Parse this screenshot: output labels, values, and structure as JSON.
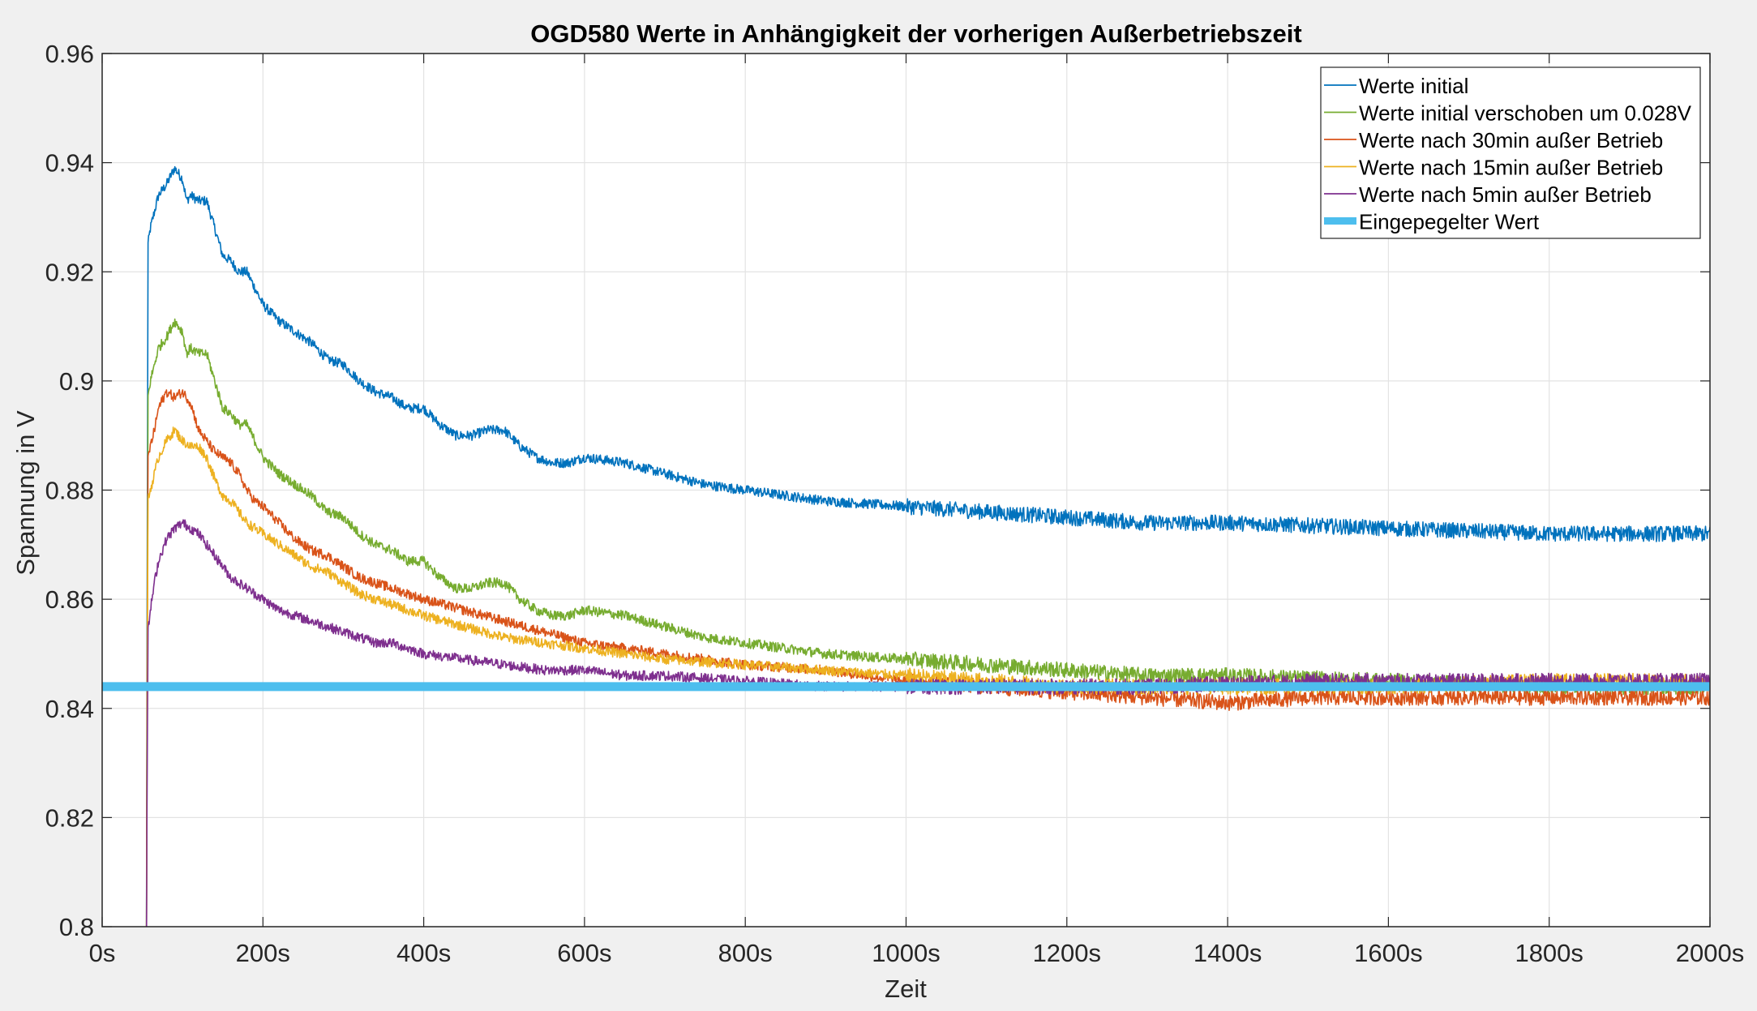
{
  "chart_data": {
    "type": "line",
    "title": "OGD580 Werte in Anhängigkeit der vorherigen Außerbetriebszeit",
    "xlabel": "Zeit",
    "ylabel": "Spannung in V",
    "xlim": [
      0,
      2000
    ],
    "ylim": [
      0.8,
      0.96
    ],
    "xticks": [
      0,
      200,
      400,
      600,
      800,
      1000,
      1200,
      1400,
      1600,
      1800,
      2000
    ],
    "xtick_labels": [
      "0s",
      "200s",
      "400s",
      "600s",
      "800s",
      "1000s",
      "1200s",
      "1400s",
      "1600s",
      "1800s",
      "2000s"
    ],
    "yticks": [
      0.8,
      0.82,
      0.84,
      0.86,
      0.88,
      0.9,
      0.92,
      0.94,
      0.96
    ],
    "ytick_labels": [
      "0.8",
      "0.82",
      "0.84",
      "0.86",
      "0.88",
      "0.9",
      "0.92",
      "0.94",
      "0.96"
    ],
    "grid": true,
    "legend_position": "top-right",
    "start_time": 55,
    "series": [
      {
        "name": "Werte initial",
        "color": "#0072BD",
        "noise": 0.0009,
        "x": [
          55,
          57,
          60,
          65,
          70,
          80,
          90,
          100,
          105,
          110,
          120,
          130,
          140,
          150,
          160,
          170,
          180,
          190,
          200,
          220,
          240,
          260,
          280,
          300,
          320,
          340,
          360,
          380,
          400,
          420,
          440,
          460,
          480,
          500,
          520,
          540,
          560,
          580,
          600,
          650,
          700,
          750,
          800,
          850,
          900,
          1000,
          1100,
          1200,
          1300,
          1400,
          1500,
          1600,
          1700,
          1800,
          1900,
          2000
        ],
        "y": [
          0.8,
          0.925,
          0.928,
          0.931,
          0.934,
          0.936,
          0.939,
          0.937,
          0.933,
          0.934,
          0.933,
          0.933,
          0.928,
          0.923,
          0.922,
          0.92,
          0.92,
          0.917,
          0.914,
          0.911,
          0.909,
          0.907,
          0.904,
          0.903,
          0.9,
          0.898,
          0.897,
          0.895,
          0.895,
          0.892,
          0.89,
          0.89,
          0.891,
          0.891,
          0.888,
          0.886,
          0.885,
          0.885,
          0.886,
          0.885,
          0.883,
          0.881,
          0.88,
          0.879,
          0.878,
          0.877,
          0.876,
          0.875,
          0.874,
          0.874,
          0.8735,
          0.873,
          0.8725,
          0.872,
          0.872,
          0.872
        ]
      },
      {
        "name": "Werte initial verschoben um 0.028V",
        "color": "#77AC30",
        "noise": 0.0009,
        "x": [
          55,
          57,
          60,
          65,
          70,
          80,
          90,
          100,
          105,
          110,
          120,
          130,
          140,
          150,
          160,
          170,
          180,
          190,
          200,
          220,
          240,
          260,
          280,
          300,
          320,
          340,
          360,
          380,
          400,
          420,
          440,
          460,
          480,
          500,
          520,
          540,
          560,
          580,
          600,
          650,
          700,
          750,
          800,
          850,
          900,
          1000,
          1100,
          1200,
          1300,
          1400,
          1500,
          1600,
          1700,
          1800,
          1900,
          2000
        ],
        "y": [
          0.8,
          0.897,
          0.9,
          0.903,
          0.906,
          0.908,
          0.911,
          0.909,
          0.905,
          0.906,
          0.905,
          0.905,
          0.9,
          0.895,
          0.894,
          0.892,
          0.892,
          0.889,
          0.886,
          0.883,
          0.881,
          0.879,
          0.876,
          0.875,
          0.872,
          0.87,
          0.869,
          0.867,
          0.867,
          0.864,
          0.862,
          0.862,
          0.863,
          0.863,
          0.86,
          0.858,
          0.857,
          0.857,
          0.858,
          0.857,
          0.855,
          0.853,
          0.852,
          0.851,
          0.85,
          0.849,
          0.848,
          0.847,
          0.846,
          0.846,
          0.8455,
          0.845,
          0.8445,
          0.844,
          0.844,
          0.844
        ]
      },
      {
        "name": "Werte nach 30min außer Betrieb",
        "color": "#D95319",
        "noise": 0.0009,
        "x": [
          55,
          57,
          60,
          65,
          70,
          80,
          90,
          100,
          110,
          120,
          130,
          140,
          150,
          160,
          170,
          180,
          190,
          200,
          220,
          240,
          260,
          280,
          300,
          320,
          340,
          360,
          380,
          400,
          450,
          500,
          550,
          600,
          650,
          700,
          750,
          800,
          900,
          1000,
          1100,
          1200,
          1300,
          1400,
          1500,
          1600,
          1700,
          1800,
          1900,
          2000
        ],
        "y": [
          0.8,
          0.886,
          0.888,
          0.891,
          0.895,
          0.898,
          0.897,
          0.898,
          0.896,
          0.891,
          0.889,
          0.887,
          0.886,
          0.885,
          0.883,
          0.88,
          0.878,
          0.877,
          0.874,
          0.871,
          0.869,
          0.868,
          0.866,
          0.864,
          0.863,
          0.862,
          0.861,
          0.86,
          0.858,
          0.856,
          0.854,
          0.852,
          0.851,
          0.85,
          0.849,
          0.848,
          0.847,
          0.845,
          0.844,
          0.843,
          0.842,
          0.841,
          0.842,
          0.842,
          0.842,
          0.842,
          0.842,
          0.842
        ]
      },
      {
        "name": "Werte nach 15min außer Betrieb",
        "color": "#EDB120",
        "noise": 0.0009,
        "x": [
          55,
          57,
          60,
          65,
          70,
          80,
          90,
          100,
          110,
          120,
          130,
          140,
          150,
          160,
          170,
          180,
          200,
          220,
          240,
          260,
          280,
          300,
          320,
          340,
          360,
          380,
          400,
          450,
          500,
          550,
          600,
          650,
          700,
          800,
          900,
          1000,
          1100,
          1200,
          1300,
          1400,
          1500,
          1600,
          1700,
          1800,
          1900,
          2000
        ],
        "y": [
          0.8,
          0.878,
          0.88,
          0.883,
          0.886,
          0.889,
          0.891,
          0.889,
          0.888,
          0.888,
          0.886,
          0.882,
          0.879,
          0.878,
          0.876,
          0.874,
          0.872,
          0.87,
          0.868,
          0.866,
          0.865,
          0.863,
          0.861,
          0.86,
          0.859,
          0.858,
          0.857,
          0.855,
          0.853,
          0.852,
          0.851,
          0.85,
          0.849,
          0.848,
          0.847,
          0.846,
          0.845,
          0.844,
          0.844,
          0.844,
          0.844,
          0.844,
          0.8445,
          0.845,
          0.845,
          0.845
        ]
      },
      {
        "name": "Werte nach 5min außer Betrieb",
        "color": "#7E2F8E",
        "noise": 0.0009,
        "x": [
          55,
          57,
          60,
          65,
          70,
          80,
          90,
          100,
          110,
          120,
          130,
          140,
          150,
          160,
          180,
          200,
          220,
          240,
          260,
          280,
          300,
          320,
          340,
          360,
          380,
          400,
          450,
          500,
          550,
          600,
          650,
          700,
          800,
          900,
          1000,
          1100,
          1200,
          1300,
          1400,
          1500,
          1600,
          1700,
          1800,
          1900,
          2000
        ],
        "y": [
          0.8,
          0.854,
          0.858,
          0.863,
          0.867,
          0.871,
          0.873,
          0.874,
          0.873,
          0.872,
          0.87,
          0.868,
          0.866,
          0.864,
          0.862,
          0.86,
          0.858,
          0.857,
          0.856,
          0.855,
          0.854,
          0.853,
          0.852,
          0.852,
          0.851,
          0.85,
          0.849,
          0.848,
          0.847,
          0.847,
          0.846,
          0.846,
          0.845,
          0.844,
          0.844,
          0.844,
          0.844,
          0.844,
          0.8445,
          0.845,
          0.845,
          0.845,
          0.845,
          0.845,
          0.845
        ]
      },
      {
        "name": "Eingepegelter Wert",
        "color": "#4DBEEE",
        "noise": 0,
        "thick": true,
        "x": [
          0,
          2000
        ],
        "y": [
          0.844,
          0.844
        ]
      }
    ]
  }
}
